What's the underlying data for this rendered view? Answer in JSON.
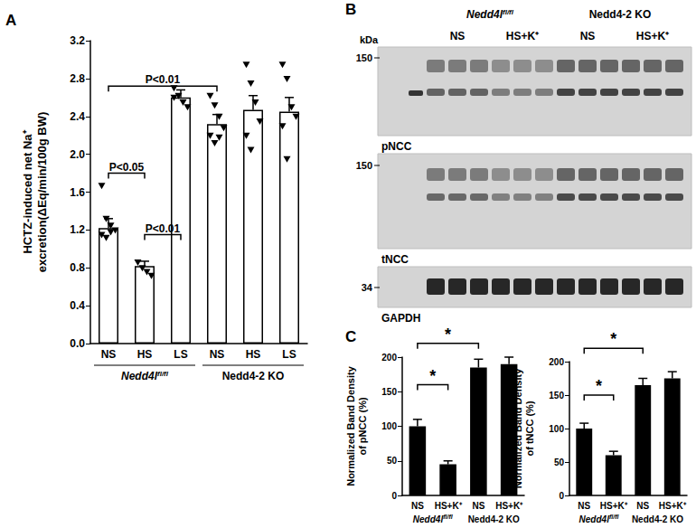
{
  "chart_data": [
    {
      "type": "bar",
      "panel_label": "A",
      "categories": [
        "NS",
        "HS",
        "LS",
        "NS",
        "HS",
        "LS"
      ],
      "groups": [
        {
          "text": "Nedd4l",
          "sup": "fl/fl",
          "from": 0,
          "to": 2
        },
        {
          "text": "Nedd4-2 KO",
          "from": 3,
          "to": 5
        }
      ],
      "values": [
        1.22,
        0.82,
        2.6,
        2.32,
        2.47,
        2.45
      ],
      "errors": [
        0.1,
        0.05,
        0.08,
        0.1,
        0.15,
        0.15
      ],
      "points": [
        [
          1.67,
          1.32,
          1.25,
          1.2,
          1.15,
          1.12,
          1.18
        ],
        [
          0.86,
          0.8,
          0.76,
          0.72
        ],
        [
          2.7,
          2.62,
          2.55,
          2.5,
          2.6
        ],
        [
          2.62,
          2.52,
          2.4,
          2.28,
          2.2,
          2.12,
          2.18
        ],
        [
          2.95,
          2.75,
          2.55,
          2.35,
          2.2,
          2.05
        ],
        [
          2.95,
          2.8,
          2.5,
          2.4,
          2.3,
          1.95
        ]
      ],
      "marker": "triangle-down",
      "color": "#ffffff",
      "y_label": "HCTZ-induced net Na⁺\nexcretion(ΔEq/min/100g BW)",
      "ylim": [
        0,
        3.2
      ],
      "yticks": [
        {
          "value": 0,
          "label": "0.0"
        },
        0.4,
        0.8,
        1.2,
        1.6,
        {
          "value": 2,
          "label": "2.0"
        },
        2.4,
        2.8,
        3.2
      ],
      "annotations": [
        {
          "text": "P<0.01",
          "from": 0,
          "to": 3,
          "y": 2.72
        },
        {
          "text": "P<0.05",
          "from": 0,
          "to": 1,
          "y": 1.8
        },
        {
          "text": "P<0.01",
          "from": 1,
          "to": 2,
          "y": 1.15
        }
      ]
    },
    {
      "type": "bar",
      "panel_label": "C",
      "categories": [
        "NS",
        "HS+K⁺",
        "NS",
        "HS+K⁺"
      ],
      "groups": [
        {
          "text": "Nedd4l",
          "sup": "fl/fl",
          "from": 0,
          "to": 1
        },
        {
          "text": "Nedd4-2 KO",
          "from": 2,
          "to": 3
        }
      ],
      "values": [
        100,
        45,
        185,
        190
      ],
      "errors": [
        10,
        5,
        12,
        10
      ],
      "color": "#000000",
      "y_label": "Normalized Band Density\nof pNCC (%)",
      "ylim": [
        0,
        200
      ],
      "yticks": [
        0,
        50,
        100,
        150,
        200
      ],
      "annotations": [
        {
          "text": "*",
          "from": 0,
          "to": 1,
          "y": 160
        },
        {
          "text": "*",
          "from": 0,
          "to": 2,
          "y": 220
        }
      ]
    },
    {
      "type": "bar",
      "categories": [
        "NS",
        "HS+K⁺",
        "NS",
        "HS+K⁺"
      ],
      "groups": [
        {
          "text": "Nedd4l",
          "sup": "fl/fl",
          "from": 0,
          "to": 1
        },
        {
          "text": "Nedd4-2 KO",
          "from": 2,
          "to": 3
        }
      ],
      "values": [
        100,
        60,
        165,
        175
      ],
      "errors": [
        8,
        6,
        10,
        10
      ],
      "color": "#000000",
      "y_label": "Normalized Band Density\nof tNCC (%)",
      "ylim": [
        0,
        200
      ],
      "yticks": [
        0,
        50,
        100,
        150,
        200
      ],
      "annotations": [
        {
          "text": "*",
          "from": 0,
          "to": 1,
          "y": 150
        },
        {
          "text": "*",
          "from": 0,
          "to": 2,
          "y": 220
        }
      ]
    }
  ],
  "blot": {
    "panel_label": "B",
    "kda_label": "kDa",
    "groups": [
      {
        "text": "Nedd4l",
        "sup": "fl/fl"
      },
      {
        "text": "Nedd4-2 KO"
      }
    ],
    "conditions": [
      "NS",
      "HS+K⁺",
      "NS",
      "HS+K⁺"
    ],
    "membranes": [
      {
        "name": "pNCC",
        "marker": 150
      },
      {
        "name": "tNCC",
        "marker": 150
      },
      {
        "name": "GAPDH",
        "marker": 34
      }
    ]
  }
}
